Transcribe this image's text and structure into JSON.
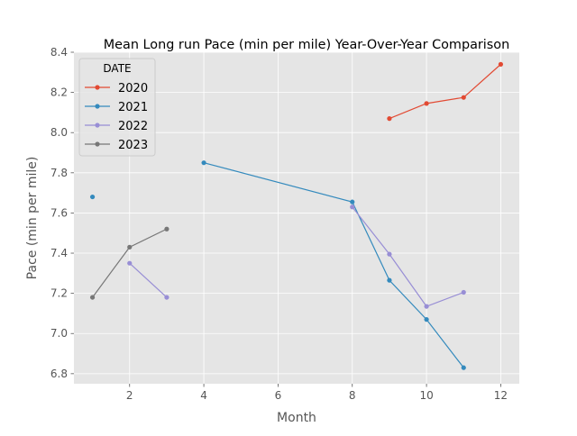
{
  "chart_data": {
    "type": "line",
    "title": "Mean Long run Pace (min per mile) Year-Over-Year Comparison",
    "xlabel": "Month",
    "ylabel": "Pace (min per mile)",
    "xlim": [
      0.5,
      12.5
    ],
    "ylim": [
      6.75,
      8.4
    ],
    "xticks": [
      2,
      4,
      6,
      8,
      10,
      12
    ],
    "yticks": [
      6.8,
      7.0,
      7.2,
      7.4,
      7.6,
      7.8,
      8.0,
      8.2,
      8.4
    ],
    "grid": true,
    "legend": {
      "title": "DATE",
      "position": "top-left"
    },
    "series": [
      {
        "name": "2020",
        "color": "#E24A33",
        "segments": [
          [
            [
              9,
              8.07
            ],
            [
              10,
              8.145
            ],
            [
              11,
              8.175
            ],
            [
              12,
              8.34
            ]
          ]
        ]
      },
      {
        "name": "2021",
        "color": "#348ABD",
        "segments": [
          [
            [
              1,
              7.68
            ]
          ],
          [
            [
              4,
              7.85
            ],
            [
              8,
              7.655
            ],
            [
              9,
              7.265
            ],
            [
              10,
              7.07
            ],
            [
              11,
              6.83
            ]
          ]
        ]
      },
      {
        "name": "2022",
        "color": "#988ED5",
        "segments": [
          [
            [
              2,
              7.35
            ],
            [
              3,
              7.18
            ]
          ],
          [
            [
              8,
              7.63
            ],
            [
              9,
              7.395
            ],
            [
              10,
              7.135
            ],
            [
              11,
              7.205
            ]
          ]
        ]
      },
      {
        "name": "2023",
        "color": "#777777",
        "segments": [
          [
            [
              1,
              7.18
            ],
            [
              2,
              7.43
            ],
            [
              3,
              7.52
            ]
          ]
        ]
      }
    ]
  }
}
